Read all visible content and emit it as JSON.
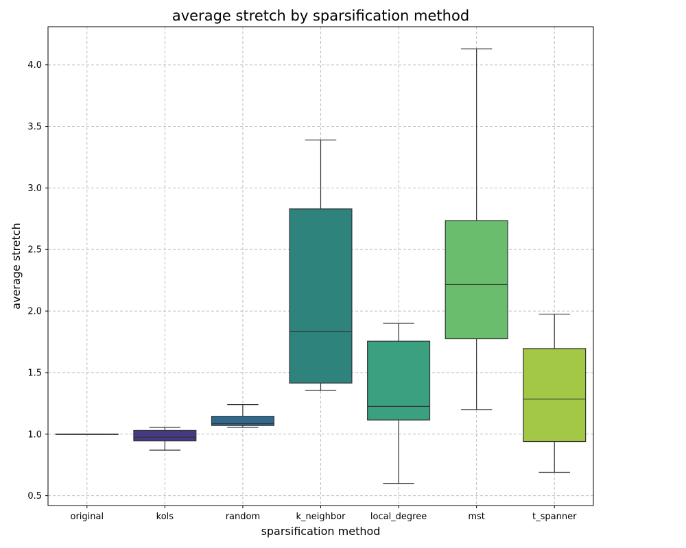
{
  "chart_data": {
    "type": "box",
    "title": "average stretch by sparsification method",
    "xlabel": "sparsification method",
    "ylabel": "average stretch",
    "ylim": [
      0.42,
      4.31
    ],
    "yticks": [
      "0.5",
      "1.0",
      "1.5",
      "2.0",
      "2.5",
      "3.0",
      "3.5",
      "4.0"
    ],
    "grid": true,
    "categories": [
      "original",
      "kols",
      "random",
      "k_neighbor",
      "local_degree",
      "mst",
      "t_spanner"
    ],
    "boxes": [
      {
        "category": "original",
        "whisker_low": 1.0,
        "q1": 1.0,
        "median": 1.0,
        "q3": 1.0,
        "whisker_high": 1.0,
        "color": "#440154"
      },
      {
        "category": "kols",
        "whisker_low": 0.87,
        "q1": 0.945,
        "median": 0.975,
        "q3": 1.03,
        "whisker_high": 1.055,
        "color": "#443983"
      },
      {
        "category": "random",
        "whisker_low": 1.055,
        "q1": 1.07,
        "median": 1.085,
        "q3": 1.145,
        "whisker_high": 1.24,
        "color": "#31688e"
      },
      {
        "category": "k_neighbor",
        "whisker_low": 1.355,
        "q1": 1.415,
        "median": 1.835,
        "q3": 2.83,
        "whisker_high": 3.39,
        "color": "#2e837c"
      },
      {
        "category": "local_degree",
        "whisker_low": 0.6,
        "q1": 1.115,
        "median": 1.225,
        "q3": 1.755,
        "whisker_high": 1.9,
        "color": "#3aa07f"
      },
      {
        "category": "mst",
        "whisker_low": 1.2,
        "q1": 1.775,
        "median": 2.215,
        "q3": 2.735,
        "whisker_high": 4.13,
        "color": "#6abd6c"
      },
      {
        "category": "t_spanner",
        "whisker_low": 0.69,
        "q1": 0.94,
        "median": 1.285,
        "q3": 1.695,
        "whisker_high": 1.975,
        "color": "#a2c846"
      }
    ]
  }
}
